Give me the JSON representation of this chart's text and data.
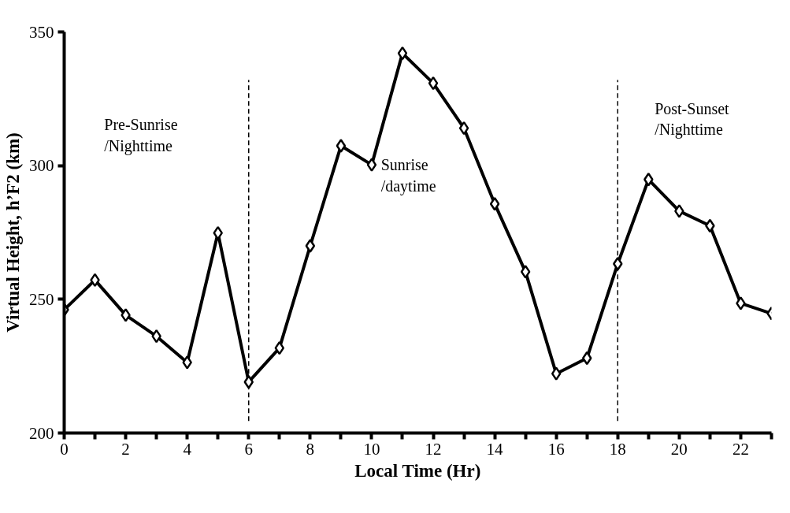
{
  "chart_data": {
    "type": "line",
    "xlabel": "Local Time (Hr)",
    "ylabel": "Virtual Height, h’F2 (km)",
    "x": [
      0,
      1,
      2,
      3,
      4,
      5,
      6,
      7,
      8,
      9,
      10,
      11,
      12,
      13,
      14,
      15,
      16,
      17,
      18,
      19,
      20,
      21,
      22,
      23
    ],
    "series": [
      {
        "color": "#000000",
        "values": [
          246.1,
          257.2,
          244.1,
          236.2,
          226.4,
          274.8,
          219.1,
          231.8,
          270.0,
          307.4,
          300.3,
          342.0,
          330.8,
          314.0,
          285.7,
          260.3,
          222.2,
          228.0,
          263.3,
          294.8,
          283.0,
          277.5,
          248.5,
          244.7
        ]
      }
    ],
    "xlim": [
      0,
      23
    ],
    "ylim": [
      200,
      350
    ],
    "xticks": [
      0,
      {
        "value": 1,
        "label": null
      },
      2,
      {
        "value": 3,
        "label": null
      },
      4,
      {
        "value": 5,
        "label": null
      },
      6,
      {
        "value": 7,
        "label": null
      },
      8,
      {
        "value": 9,
        "label": null
      },
      10,
      {
        "value": 11,
        "label": null
      },
      12,
      {
        "value": 13,
        "label": null
      },
      14,
      {
        "value": 15,
        "label": null
      },
      16,
      {
        "value": 17,
        "label": null
      },
      18,
      {
        "value": 19,
        "label": null
      },
      20,
      {
        "value": 21,
        "label": null
      },
      22,
      {
        "value": 23,
        "label": null
      }
    ],
    "yticks": [
      200,
      250,
      300,
      350
    ],
    "ref_lines": [
      {
        "axis": "x",
        "value": 6,
        "color": "#000000",
        "line_style": "dashed"
      },
      {
        "axis": "x",
        "value": 18,
        "color": "#000000",
        "line_style": "dashed"
      }
    ],
    "annotations": [
      "Pre-Sunrise\n/Nighttime",
      "Sunrise\n/daytime",
      "Post-Sunset\n/Nighttime"
    ],
    "marker": "diamond",
    "line_style": "solid",
    "grid": false
  }
}
